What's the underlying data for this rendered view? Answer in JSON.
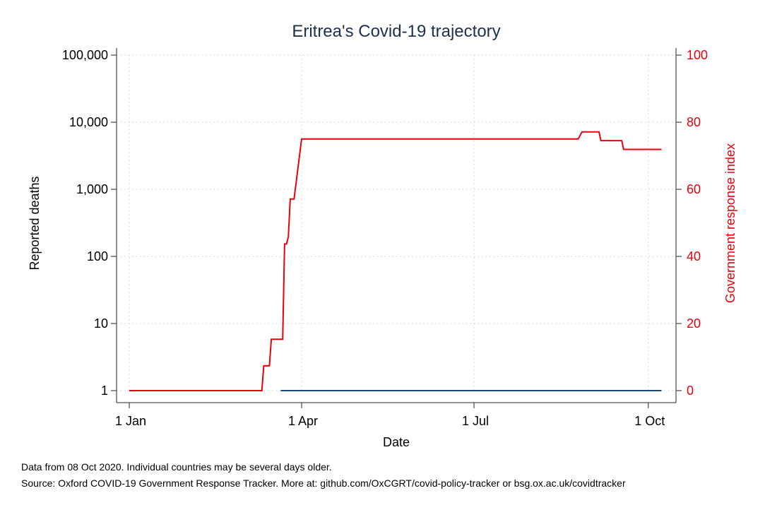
{
  "chart_data": {
    "type": "line",
    "title": "Eritrea's Covid-19 trajectory",
    "xlabel": "Date",
    "ylabel_left": "Reported deaths",
    "ylabel_right": "Government response index",
    "x_ticks": [
      {
        "date": "2020-01-01",
        "label": "1 Jan"
      },
      {
        "date": "2020-04-01",
        "label": "1 Apr"
      },
      {
        "date": "2020-07-01",
        "label": "1 Jul"
      },
      {
        "date": "2020-10-01",
        "label": "1 Oct"
      }
    ],
    "y_left_scale": "log",
    "y_left_ticks": [
      {
        "value": 1,
        "label": "1"
      },
      {
        "value": 10,
        "label": "10"
      },
      {
        "value": 100,
        "label": "100"
      },
      {
        "value": 1000,
        "label": "1,000"
      },
      {
        "value": 10000,
        "label": "10,000"
      },
      {
        "value": 100000,
        "label": "100,000"
      }
    ],
    "y_right_ticks": [
      {
        "value": 0,
        "label": "0"
      },
      {
        "value": 20,
        "label": "20"
      },
      {
        "value": 40,
        "label": "40"
      },
      {
        "value": 60,
        "label": "60"
      },
      {
        "value": 80,
        "label": "80"
      },
      {
        "value": 100,
        "label": "100"
      }
    ],
    "ylim_left": [
      1,
      100000
    ],
    "ylim_right": [
      0,
      100
    ],
    "grid": true,
    "series": [
      {
        "axis": "left",
        "color": "#1a476f",
        "points": [
          {
            "date": "2020-03-21",
            "value": 1
          },
          {
            "date": "2020-10-08",
            "value": 1
          }
        ]
      },
      {
        "name": "Government response index",
        "axis": "right",
        "color": "#e8000b",
        "points": [
          {
            "date": "2020-01-01",
            "value": 0
          },
          {
            "date": "2020-03-11",
            "value": 0
          },
          {
            "date": "2020-03-12",
            "value": 7.4
          },
          {
            "date": "2020-03-15",
            "value": 7.4
          },
          {
            "date": "2020-03-16",
            "value": 15.3
          },
          {
            "date": "2020-03-22",
            "value": 15.3
          },
          {
            "date": "2020-03-23",
            "value": 43.7
          },
          {
            "date": "2020-03-24",
            "value": 43.7
          },
          {
            "date": "2020-03-25",
            "value": 45.8
          },
          {
            "date": "2020-03-26",
            "value": 57.1
          },
          {
            "date": "2020-03-28",
            "value": 57.1
          },
          {
            "date": "2020-04-01",
            "value": 75
          },
          {
            "date": "2020-08-25",
            "value": 75
          },
          {
            "date": "2020-08-27",
            "value": 77.1
          },
          {
            "date": "2020-09-05",
            "value": 77.1
          },
          {
            "date": "2020-09-06",
            "value": 74.5
          },
          {
            "date": "2020-09-17",
            "value": 74.5
          },
          {
            "date": "2020-09-18",
            "value": 71.9
          },
          {
            "date": "2020-10-08",
            "value": 71.9
          }
        ]
      }
    ]
  },
  "notes": {
    "line1": "Data from 08 Oct 2020. Individual countries may be several days older.",
    "line2": "Source: Oxford COVID-19 Government Response Tracker. More at: github.com/OxCGRT/covid-policy-tracker or bsg.ox.ac.uk/covidtracker"
  },
  "colors": {
    "left_axis": "#000000",
    "right_axis": "#e8000b",
    "title": "#1f2f4e",
    "grid": "#cfcfcf"
  }
}
